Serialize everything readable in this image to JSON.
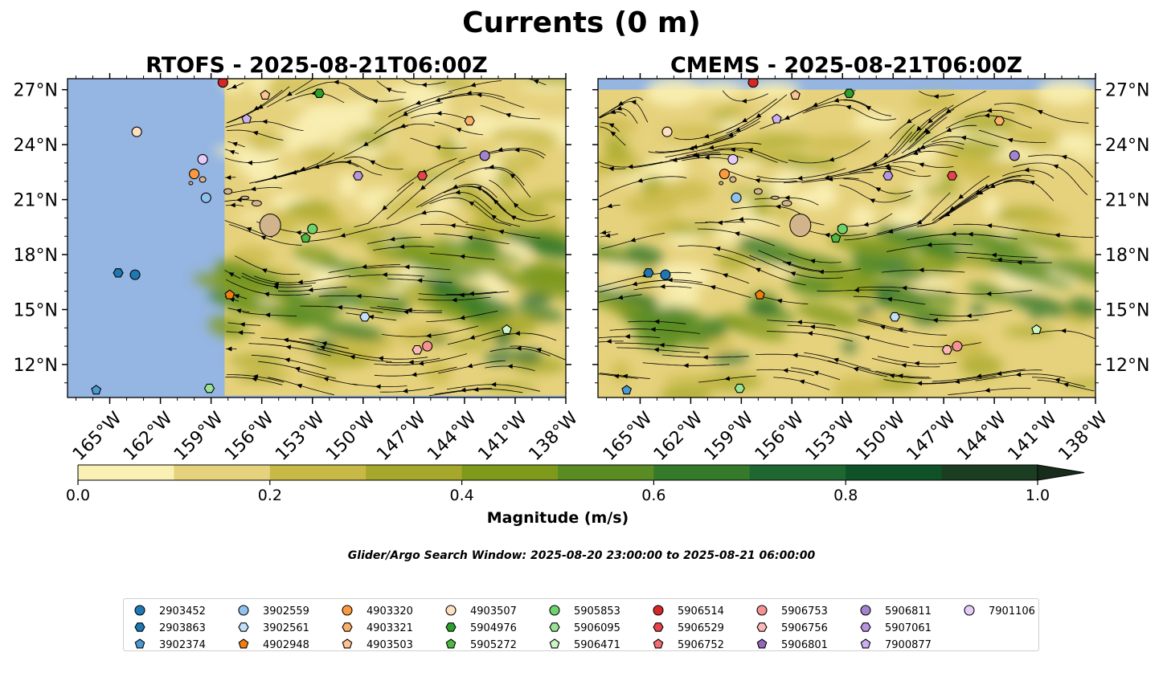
{
  "figure": {
    "title": "Currents (0 m)",
    "search_window": "Glider/Argo Search Window: 2025-08-20 23:00:00 to 2025-08-21 06:00:00"
  },
  "chart_data": [
    {
      "type": "map",
      "title": "RTOFS - 2025-08-21T06:00Z",
      "extent": {
        "lon": [
          -167.5,
          -138.0
        ],
        "lat": [
          10.2,
          27.6
        ]
      },
      "model_lon_min": -158.2,
      "lon_ticks": [
        -165,
        -162,
        -159,
        -156,
        -153,
        -150,
        -147,
        -144,
        -141,
        -138
      ],
      "lon_tick_labels": [
        "165°W",
        "162°W",
        "159°W",
        "156°W",
        "153°W",
        "150°W",
        "147°W",
        "144°W",
        "141°W",
        "138°W"
      ],
      "lat_ticks": [
        12,
        15,
        18,
        21,
        24,
        27
      ],
      "lat_tick_labels": [
        "12°N",
        "15°N",
        "18°N",
        "21°N",
        "24°N",
        "27°N"
      ],
      "floats": [
        {
          "id": "2903452",
          "lon": -163.5,
          "lat": 16.9
        },
        {
          "id": "2903863",
          "lon": -164.5,
          "lat": 17.0
        },
        {
          "id": "3902374",
          "lon": -165.8,
          "lat": 10.6
        },
        {
          "id": "3902559",
          "lon": -159.3,
          "lat": 21.1
        },
        {
          "id": "3902561",
          "lon": -149.9,
          "lat": 14.6
        },
        {
          "id": "4903320",
          "lon": -160.0,
          "lat": 22.4
        },
        {
          "id": "4902948",
          "lon": -157.9,
          "lat": 15.8
        },
        {
          "id": "4903321",
          "lon": -143.7,
          "lat": 25.3
        },
        {
          "id": "4903503",
          "lon": -155.8,
          "lat": 26.7
        },
        {
          "id": "4903507",
          "lon": -163.4,
          "lat": 24.7
        },
        {
          "id": "5904976",
          "lon": -152.6,
          "lat": 26.8
        },
        {
          "id": "5905272",
          "lon": -153.4,
          "lat": 18.9
        },
        {
          "id": "5905853",
          "lon": -153.0,
          "lat": 19.4
        },
        {
          "id": "5906095",
          "lon": -159.1,
          "lat": 10.7
        },
        {
          "id": "5906471",
          "lon": -141.5,
          "lat": 13.9
        },
        {
          "id": "5906514",
          "lon": -158.3,
          "lat": 27.4
        },
        {
          "id": "5906529",
          "lon": -146.5,
          "lat": 22.3
        },
        {
          "id": "5906753",
          "lon": -146.2,
          "lat": 13.0
        },
        {
          "id": "5906756",
          "lon": -146.8,
          "lat": 12.8
        },
        {
          "id": "5906811",
          "lon": -142.8,
          "lat": 23.4
        },
        {
          "id": "5907061",
          "lon": -150.3,
          "lat": 22.3
        },
        {
          "id": "7900877",
          "lon": -156.9,
          "lat": 25.4
        },
        {
          "id": "7901106",
          "lon": -159.5,
          "lat": 23.2
        }
      ]
    },
    {
      "type": "map",
      "title": "CMEMS - 2025-08-21T06:00Z",
      "extent": {
        "lon": [
          -167.5,
          -138.0
        ],
        "lat": [
          10.2,
          27.6
        ]
      },
      "model_lon_min": -167.5,
      "lon_ticks": [
        -165,
        -162,
        -159,
        -156,
        -153,
        -150,
        -147,
        -144,
        -141,
        -138
      ],
      "lon_tick_labels": [
        "165°W",
        "162°W",
        "159°W",
        "156°W",
        "153°W",
        "150°W",
        "147°W",
        "144°W",
        "141°W",
        "138°W"
      ],
      "lat_ticks": [
        12,
        15,
        18,
        21,
        24,
        27
      ],
      "lat_tick_labels": [
        "12°N",
        "15°N",
        "18°N",
        "21°N",
        "24°N",
        "27°N"
      ],
      "floats_same_as_panel": 0
    }
  ],
  "colorbar": {
    "label": "Magnitude (m/s)",
    "levels": [
      0.0,
      0.1,
      0.2,
      0.3,
      0.4,
      0.5,
      0.6,
      0.7,
      0.8,
      0.9,
      1.0
    ],
    "colors": [
      "#faf0b4",
      "#e6d27d",
      "#c8b946",
      "#a5a82a",
      "#7f9a1a",
      "#598c23",
      "#35792a",
      "#1e6731",
      "#0f5228",
      "#1b3d22"
    ],
    "extend_color": "#182c1b",
    "tick_labels": [
      "0.0",
      "0.2",
      "0.4",
      "0.6",
      "0.8",
      "1.0"
    ]
  },
  "legend": {
    "entries": [
      {
        "id": "2903452",
        "marker": "circle",
        "color": "#1f77b4"
      },
      {
        "id": "2903863",
        "marker": "hexagon",
        "color": "#1f77b4"
      },
      {
        "id": "3902374",
        "marker": "pentagon",
        "color": "#4b9ad3"
      },
      {
        "id": "3902559",
        "marker": "circle",
        "color": "#8fc2ee"
      },
      {
        "id": "3902561",
        "marker": "hexagon",
        "color": "#c2e0f8"
      },
      {
        "id": "4902948",
        "marker": "pentagon",
        "color": "#f07f10"
      },
      {
        "id": "4903320",
        "marker": "circle",
        "color": "#fd9a40"
      },
      {
        "id": "4903321",
        "marker": "hexagon",
        "color": "#fcae68"
      },
      {
        "id": "4903503",
        "marker": "pentagon",
        "color": "#fdc391"
      },
      {
        "id": "4903507",
        "marker": "circle",
        "color": "#fde0c0"
      },
      {
        "id": "5904976",
        "marker": "hexagon",
        "color": "#2ca02c"
      },
      {
        "id": "5905272",
        "marker": "pentagon",
        "color": "#4cb944"
      },
      {
        "id": "5905853",
        "marker": "circle",
        "color": "#6dd36a"
      },
      {
        "id": "5906095",
        "marker": "hexagon",
        "color": "#98e394"
      },
      {
        "id": "5906471",
        "marker": "pentagon",
        "color": "#ccf5c6"
      },
      {
        "id": "5906514",
        "marker": "circle",
        "color": "#d62728"
      },
      {
        "id": "5906529",
        "marker": "hexagon",
        "color": "#e6434b"
      },
      {
        "id": "5906752",
        "marker": "pentagon",
        "color": "#f26c74"
      },
      {
        "id": "5906753",
        "marker": "circle",
        "color": "#f79294"
      },
      {
        "id": "5906756",
        "marker": "hexagon",
        "color": "#fbb8b6"
      },
      {
        "id": "5906801",
        "marker": "pentagon",
        "color": "#9467bd"
      },
      {
        "id": "5906811",
        "marker": "circle",
        "color": "#a283cf"
      },
      {
        "id": "5907061",
        "marker": "hexagon",
        "color": "#b596df"
      },
      {
        "id": "7900877",
        "marker": "pentagon",
        "color": "#ccb0f2"
      },
      {
        "id": "7901106",
        "marker": "circle",
        "color": "#e6ccfb"
      }
    ]
  },
  "colors": {
    "land": "#d2b48c",
    "masked_ocean": "#95b5e2"
  }
}
